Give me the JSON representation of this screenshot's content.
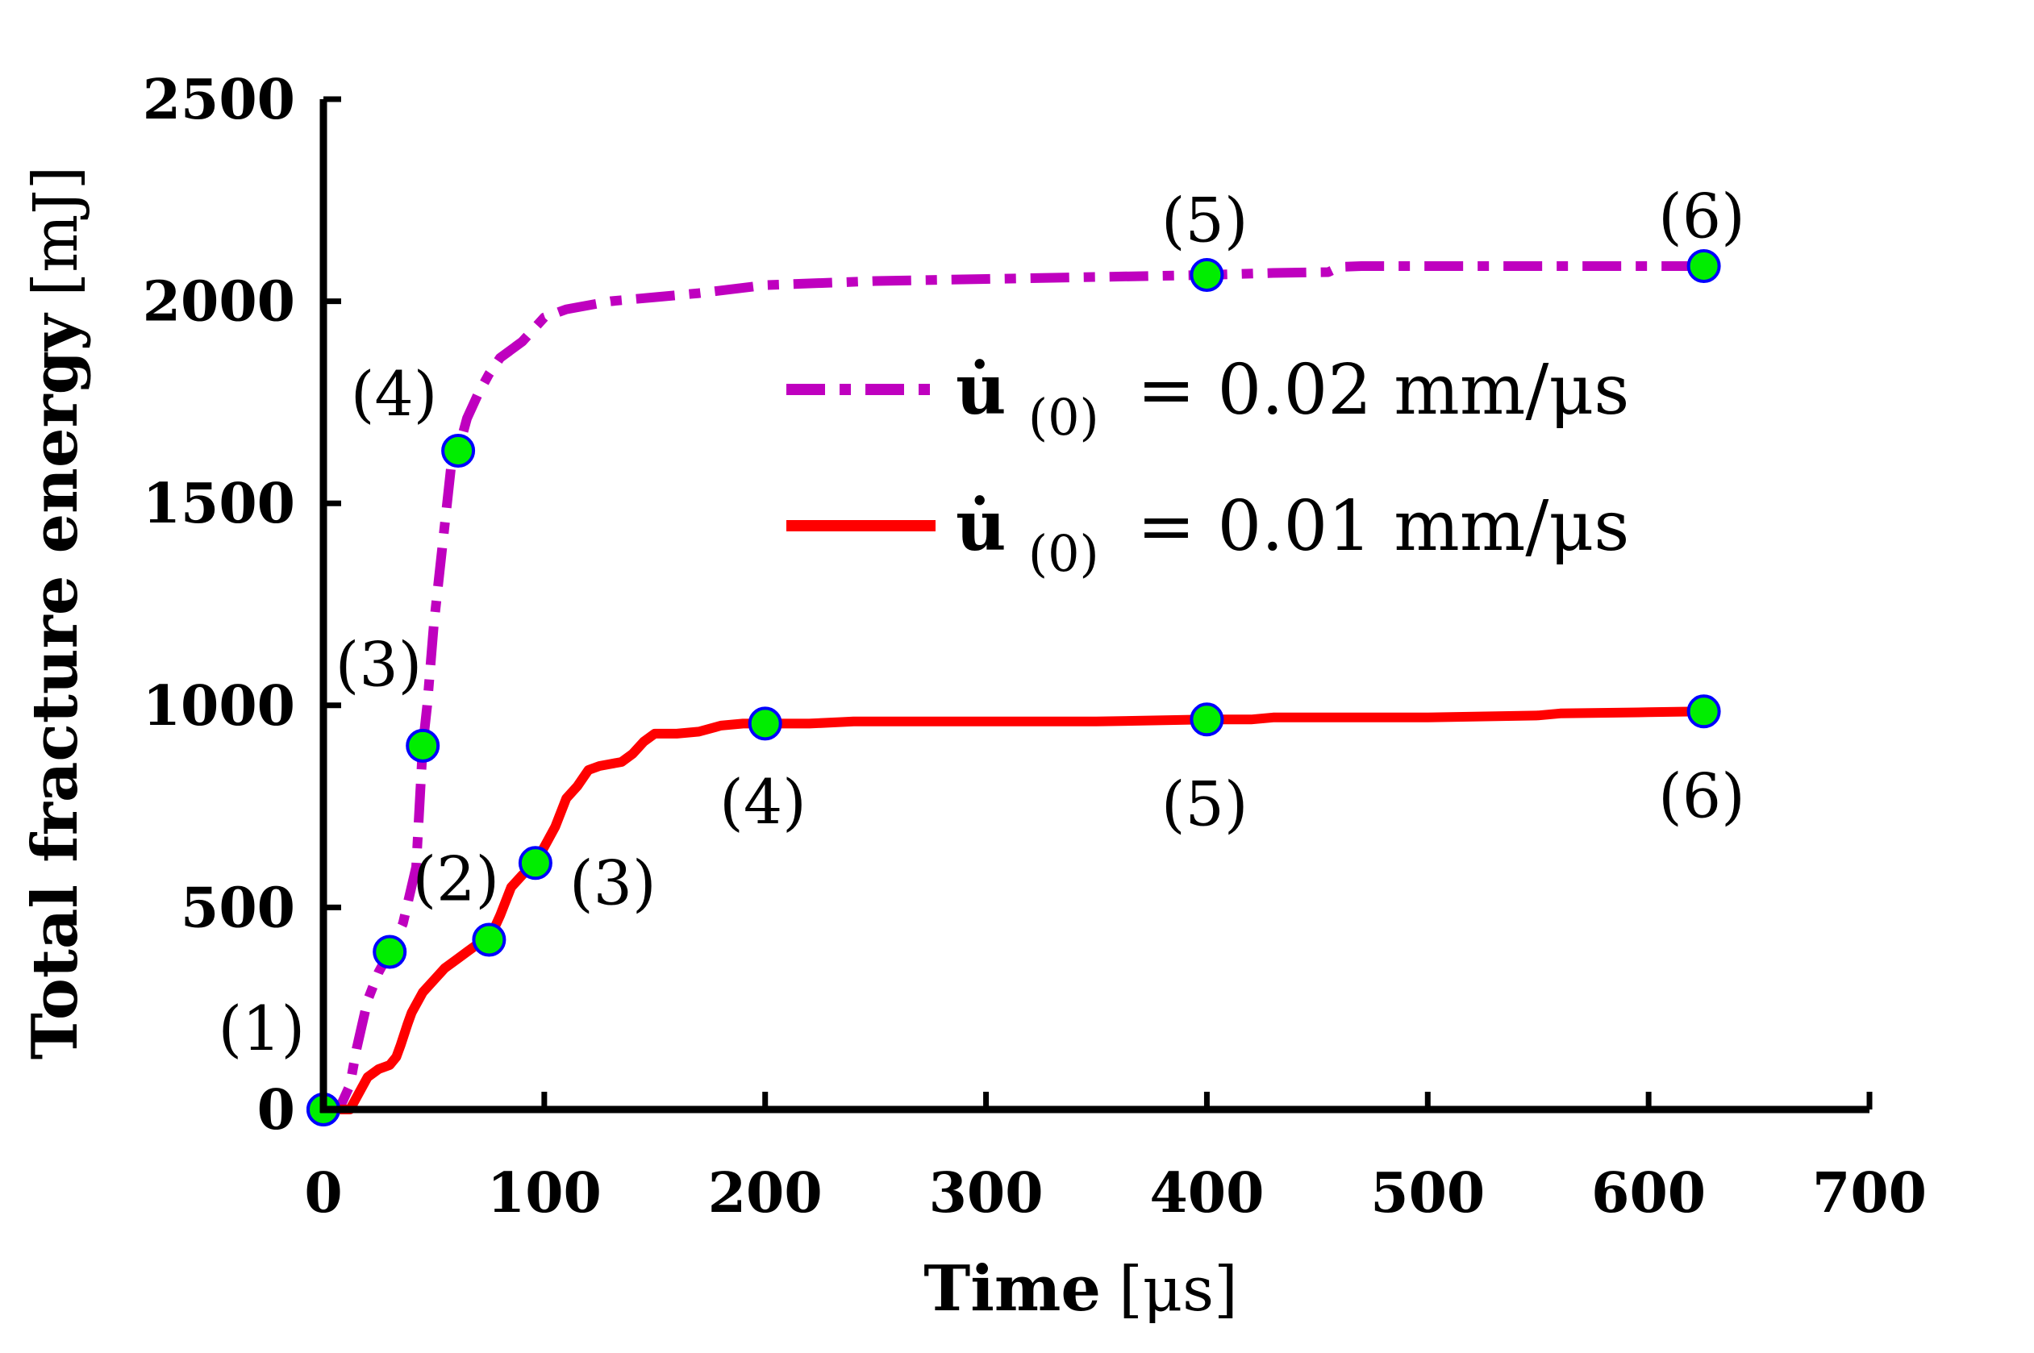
{
  "chart_data": {
    "type": "line",
    "title": "",
    "xlabel": {
      "bold": "Time",
      "unit": "[μs]"
    },
    "ylabel": {
      "bold": "Total fracture energy",
      "unit": "[mJ]"
    },
    "xlim": [
      0,
      700
    ],
    "ylim": [
      0,
      2500
    ],
    "xticks": [
      0,
      100,
      200,
      300,
      400,
      500,
      600,
      700
    ],
    "yticks": [
      0,
      500,
      1000,
      1500,
      2000,
      2500
    ],
    "xtick_labels": [
      "0",
      "100",
      "200",
      "300",
      "400",
      "500",
      "600",
      "700"
    ],
    "ytick_labels": [
      "0",
      "500",
      "1000",
      "1500",
      "2000",
      "2500"
    ],
    "series": [
      {
        "name": "u(0) = 0.02 mm/μs",
        "legend_symbol": "u̇",
        "legend_sub": "(0)",
        "legend_rest": "= 0.02 mm/μs",
        "color": "#bf00bf",
        "style": "dashdot",
        "x": [
          0,
          7,
          12,
          15,
          20,
          25,
          30,
          36,
          42,
          45,
          47,
          50,
          55,
          58,
          61,
          65,
          70,
          75,
          80,
          90,
          100,
          110,
          120,
          130,
          150,
          170,
          200,
          250,
          300,
          350,
          400,
          430,
          455,
          460,
          470,
          500,
          550,
          600,
          625
        ],
        "y": [
          0,
          0,
          60,
          150,
          270,
          340,
          390,
          460,
          600,
          900,
          1000,
          1200,
          1450,
          1600,
          1630,
          1710,
          1770,
          1820,
          1860,
          1900,
          1960,
          1980,
          1990,
          2000,
          2010,
          2020,
          2040,
          2050,
          2055,
          2060,
          2065,
          2070,
          2072,
          2085,
          2087,
          2087,
          2087,
          2087,
          2087
        ]
      },
      {
        "name": "u(0) = 0.01 mm/μs",
        "legend_symbol": "u̇",
        "legend_sub": "(0)",
        "legend_rest": "= 0.01 mm/μs",
        "color": "#ff0000",
        "style": "solid",
        "x": [
          0,
          12,
          15,
          20,
          25,
          30,
          33,
          35,
          38,
          40,
          45,
          50,
          55,
          60,
          65,
          70,
          75,
          80,
          85,
          90,
          96,
          100,
          105,
          110,
          115,
          120,
          125,
          130,
          135,
          140,
          145,
          150,
          160,
          170,
          180,
          190,
          200,
          220,
          240,
          260,
          280,
          300,
          350,
          400,
          420,
          430,
          450,
          500,
          550,
          560,
          600,
          625
        ],
        "y": [
          0,
          0,
          30,
          80,
          100,
          110,
          130,
          160,
          210,
          240,
          290,
          320,
          350,
          370,
          390,
          410,
          420,
          480,
          550,
          580,
          610,
          650,
          700,
          770,
          800,
          840,
          850,
          855,
          860,
          880,
          910,
          930,
          930,
          935,
          950,
          955,
          955,
          955,
          960,
          960,
          960,
          960,
          960,
          965,
          965,
          970,
          970,
          970,
          975,
          980,
          983,
          985
        ]
      }
    ],
    "markers": [
      {
        "series": "0.02",
        "x": 0,
        "y": 0
      },
      {
        "series": "0.02",
        "x": 30,
        "y": 390
      },
      {
        "series": "0.02",
        "x": 45,
        "y": 900
      },
      {
        "series": "0.02",
        "x": 61,
        "y": 1630
      },
      {
        "series": "0.02",
        "x": 400,
        "y": 2065
      },
      {
        "series": "0.02",
        "x": 625,
        "y": 2087
      },
      {
        "series": "0.01",
        "x": 0,
        "y": 0
      },
      {
        "series": "0.01",
        "x": 75,
        "y": 420
      },
      {
        "series": "0.01",
        "x": 96,
        "y": 610
      },
      {
        "series": "0.01",
        "x": 200,
        "y": 955
      },
      {
        "series": "0.01",
        "x": 400,
        "y": 965
      },
      {
        "series": "0.01",
        "x": 625,
        "y": 985
      }
    ],
    "marker_fill": "#00ee00",
    "marker_edge": "#0000ff",
    "annotations": [
      {
        "text": "(1)",
        "x": -28,
        "y": 200
      },
      {
        "text": "(2)",
        "x": 60,
        "y": 570
      },
      {
        "text": "(3)",
        "x": 25,
        "y": 1100
      },
      {
        "text": "(4)",
        "x": 32,
        "y": 1770
      },
      {
        "text": "(5)",
        "x": 399,
        "y": 2200
      },
      {
        "text": "(6)",
        "x": 624,
        "y": 2210
      },
      {
        "text": "(3)",
        "x": 131,
        "y": 560
      },
      {
        "text": "(4)",
        "x": 199,
        "y": 760
      },
      {
        "text": "(5)",
        "x": 399,
        "y": 755
      },
      {
        "text": "(6)",
        "x": 624,
        "y": 775
      }
    ],
    "legend_position": "right-center"
  }
}
